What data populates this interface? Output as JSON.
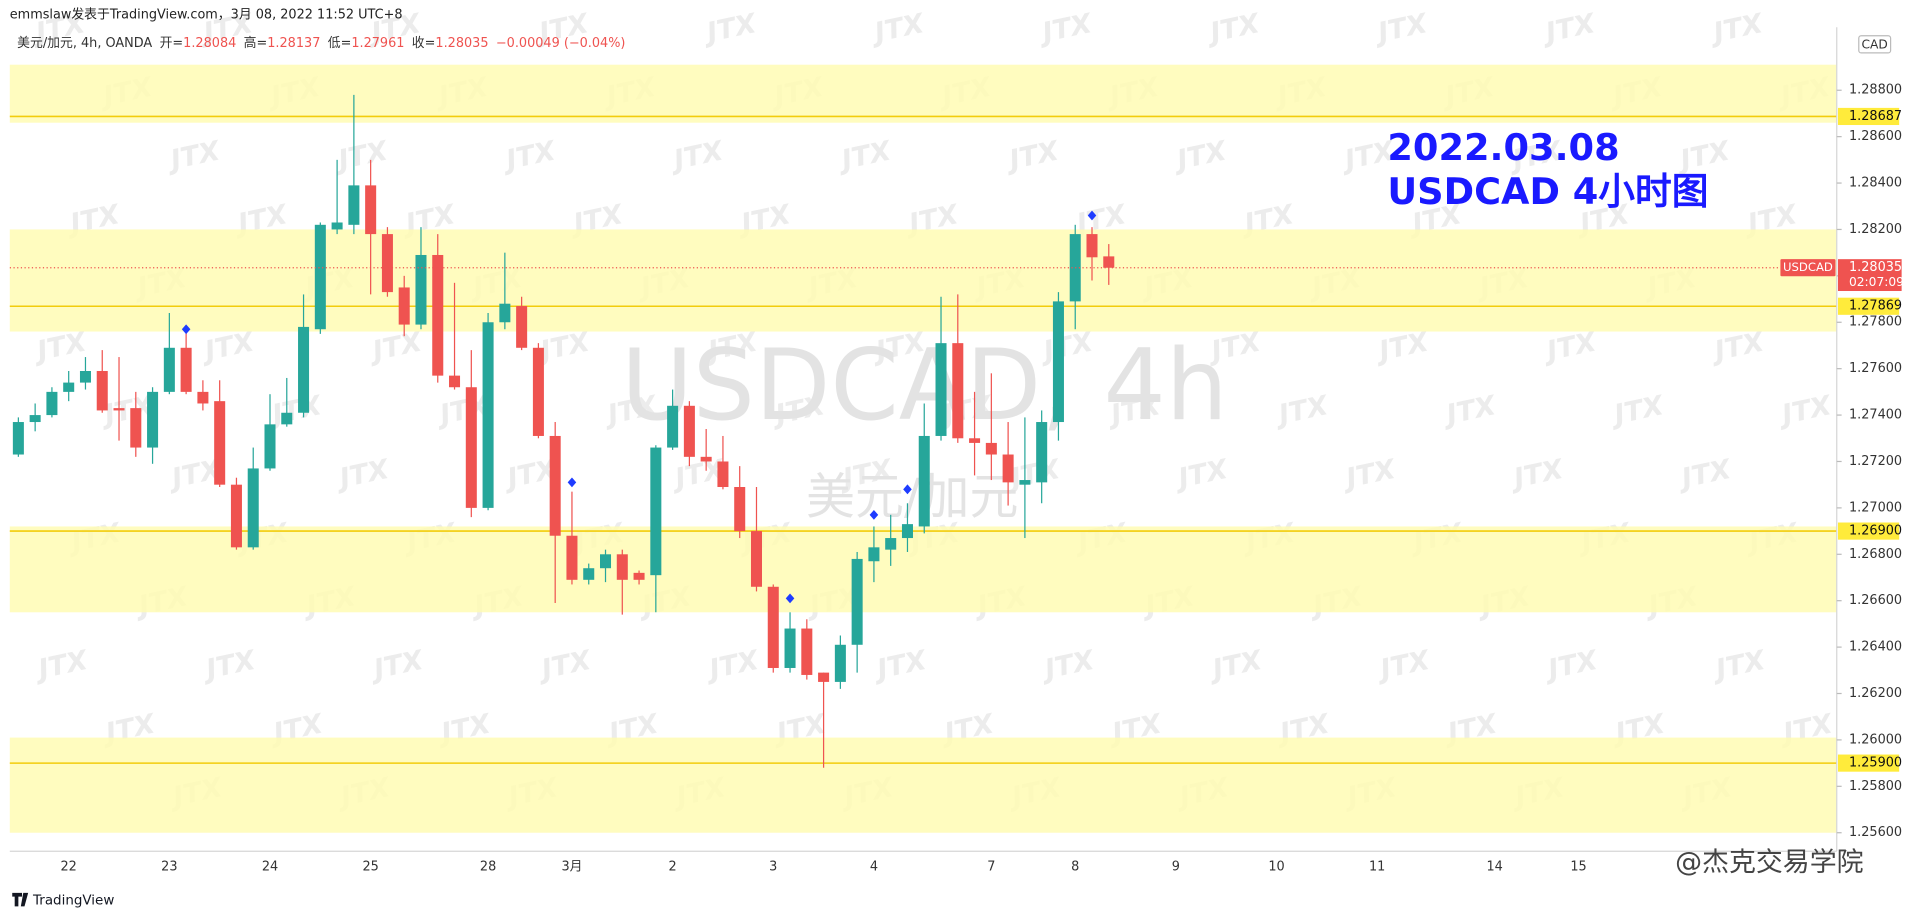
{
  "chart_data": {
    "type": "candlestick",
    "byline": "emmslaw发表于TradingView.com，3月 08, 2022 11:52 UTC+8",
    "legend_symbol": "美元/加元, 4h, OANDA",
    "legend_ohlc": [
      {
        "label": "开=",
        "value": 1.28084
      },
      {
        "label": "高=",
        "value": 1.28137
      },
      {
        "label": "低=",
        "value": 1.27961
      },
      {
        "label": "收=",
        "value": 1.28035
      }
    ],
    "legend_change": "−0.00049 (−0.04%)",
    "currency": "CAD",
    "annotation": [
      "2022.03.08",
      "USDCAD 4小时图"
    ],
    "watermark_title": "USDCAD, 4h",
    "watermark_subtitle": "美元/加元",
    "watermark_logo": "JTX",
    "brand": "TradingView",
    "author_watermark": "@杰克交易学院",
    "up_color": "#26a69a",
    "down_color": "#ef5350",
    "signal_color": "#1e3cff",
    "zone_color": "#fffbb4",
    "level_color": "#f2cc0c",
    "ylim": [
      1.2552,
      1.2904
    ],
    "yticks": [
      {
        "value": 1.256,
        "label": "1.25600"
      },
      {
        "value": 1.258,
        "label": "1.25800"
      },
      {
        "value": 1.26,
        "label": "1.26000"
      },
      {
        "value": 1.262,
        "label": "1.26200"
      },
      {
        "value": 1.264,
        "label": "1.26400"
      },
      {
        "value": 1.266,
        "label": "1.26600"
      },
      {
        "value": 1.268,
        "label": "1.26800"
      },
      {
        "value": 1.27,
        "label": "1.27000"
      },
      {
        "value": 1.272,
        "label": "1.27200"
      },
      {
        "value": 1.274,
        "label": "1.27400"
      },
      {
        "value": 1.276,
        "label": "1.27600"
      },
      {
        "value": 1.278,
        "label": "1.27800"
      },
      {
        "value": 1.28,
        "label": "1.28000"
      },
      {
        "value": 1.282,
        "label": "1.28200"
      },
      {
        "value": 1.284,
        "label": "1.28400"
      },
      {
        "value": 1.286,
        "label": "1.28600"
      },
      {
        "value": 1.288,
        "label": "1.28800"
      }
    ],
    "zones": [
      [
        1.2866,
        1.2891
      ],
      [
        1.2776,
        1.282
      ],
      [
        1.2655,
        1.2692
      ],
      [
        1.256,
        1.2601
      ]
    ],
    "levels": [
      1.28687,
      1.27869,
      {
        "value": 1.269,
        "label": "1.26900"
      },
      {
        "value": 1.259,
        "label": "1.25900"
      }
    ],
    "last_symbol": "USDCAD",
    "last_price": 1.28035,
    "countdown": "02:07:09",
    "categories": [
      null,
      null,
      null,
      "22",
      null,
      null,
      null,
      null,
      null,
      "23",
      null,
      null,
      null,
      null,
      null,
      "24",
      null,
      null,
      null,
      null,
      null,
      "25",
      null,
      null,
      null,
      null,
      null,
      null,
      "28",
      null,
      null,
      null,
      null,
      "3月",
      null,
      null,
      null,
      null,
      null,
      "2",
      null,
      null,
      null,
      null,
      null,
      "3",
      null,
      null,
      null,
      null,
      null,
      "4",
      null,
      null,
      null,
      null,
      null,
      null,
      "7",
      null,
      null,
      null,
      null,
      "8",
      null,
      null,
      null,
      null,
      null,
      "9",
      null,
      null,
      null,
      null,
      null,
      "10",
      null,
      null,
      null,
      null,
      null,
      "11",
      null,
      null,
      null,
      null,
      null,
      null,
      "14",
      null,
      null,
      null,
      null,
      "15"
    ],
    "candles": [
      [
        1.2723,
        1.2739,
        1.2722,
        1.2737
      ],
      [
        1.2737,
        1.2745,
        1.2733,
        1.274
      ],
      [
        1.274,
        1.2752,
        1.2739,
        1.275
      ],
      [
        1.275,
        1.2759,
        1.2746,
        1.2754
      ],
      [
        1.2754,
        1.2765,
        1.2751,
        1.2759
      ],
      [
        1.2759,
        1.2768,
        1.2741,
        1.2742
      ],
      [
        1.2743,
        1.2765,
        1.2729,
        1.2742
      ],
      [
        1.2743,
        1.275,
        1.2722,
        1.2726
      ],
      [
        1.2726,
        1.2752,
        1.2719,
        1.275
      ],
      [
        1.275,
        1.2784,
        1.2749,
        1.2769
      ],
      [
        1.2769,
        1.2776,
        1.2749,
        1.275
      ],
      [
        1.275,
        1.2755,
        1.2742,
        1.2745
      ],
      [
        1.2746,
        1.2755,
        1.2709,
        1.271
      ],
      [
        1.271,
        1.2713,
        1.2682,
        1.2683
      ],
      [
        1.2683,
        1.2726,
        1.2682,
        1.2717
      ],
      [
        1.2717,
        1.2749,
        1.2716,
        1.2736
      ],
      [
        1.2736,
        1.2756,
        1.2735,
        1.2741
      ],
      [
        1.2741,
        1.2792,
        1.2739,
        1.2778
      ],
      [
        1.2777,
        1.2823,
        1.2775,
        1.2822
      ],
      [
        1.282,
        1.285,
        1.2818,
        1.2823
      ],
      [
        1.2822,
        1.2878,
        1.2818,
        1.2839
      ],
      [
        1.2839,
        1.285,
        1.2792,
        1.2818
      ],
      [
        1.2818,
        1.2821,
        1.2791,
        1.2793
      ],
      [
        1.2795,
        1.28,
        1.2774,
        1.2779
      ],
      [
        1.2779,
        1.2821,
        1.2777,
        1.2809
      ],
      [
        1.2809,
        1.2818,
        1.2754,
        1.2757
      ],
      [
        1.2757,
        1.2797,
        1.2751,
        1.2752
      ],
      [
        1.2752,
        1.2768,
        1.2696,
        1.27
      ],
      [
        1.27,
        1.2784,
        1.2699,
        1.278
      ],
      [
        1.278,
        1.281,
        1.2777,
        1.2788
      ],
      [
        1.2787,
        1.2791,
        1.2768,
        1.2769
      ],
      [
        1.2769,
        1.2771,
        1.273,
        1.2731
      ],
      [
        1.2731,
        1.2737,
        1.2659,
        1.2688
      ],
      [
        1.2688,
        1.2707,
        1.2667,
        1.2669
      ],
      [
        1.2669,
        1.2676,
        1.2667,
        1.2674
      ],
      [
        1.2674,
        1.2682,
        1.2668,
        1.268
      ],
      [
        1.268,
        1.2682,
        1.2654,
        1.2669
      ],
      [
        1.2672,
        1.2673,
        1.2667,
        1.2669
      ],
      [
        1.2671,
        1.2727,
        1.2655,
        1.2726
      ],
      [
        1.2726,
        1.2751,
        1.2725,
        1.2744
      ],
      [
        1.2744,
        1.2746,
        1.2718,
        1.2722
      ],
      [
        1.2722,
        1.2734,
        1.2716,
        1.272
      ],
      [
        1.272,
        1.2731,
        1.2708,
        1.2709
      ],
      [
        1.2709,
        1.2718,
        1.2687,
        1.269
      ],
      [
        1.269,
        1.2709,
        1.2664,
        1.2666
      ],
      [
        1.2666,
        1.2667,
        1.2629,
        1.2631
      ],
      [
        1.2631,
        1.2655,
        1.2629,
        1.2648
      ],
      [
        1.2648,
        1.2652,
        1.2626,
        1.2628
      ],
      [
        1.2629,
        1.2629,
        1.2588,
        1.2625
      ],
      [
        1.2625,
        1.2645,
        1.2622,
        1.2641
      ],
      [
        1.2641,
        1.2681,
        1.2629,
        1.2678
      ],
      [
        1.2677,
        1.2692,
        1.2668,
        1.2683
      ],
      [
        1.2682,
        1.2697,
        1.2675,
        1.2687
      ],
      [
        1.2687,
        1.2702,
        1.2681,
        1.2693
      ],
      [
        1.2692,
        1.2745,
        1.2689,
        1.2731
      ],
      [
        1.2731,
        1.2791,
        1.2729,
        1.2771
      ],
      [
        1.2771,
        1.2792,
        1.2728,
        1.273
      ],
      [
        1.273,
        1.275,
        1.2714,
        1.2728
      ],
      [
        1.2728,
        1.2758,
        1.2712,
        1.2723
      ],
      [
        1.2723,
        1.2737,
        1.2701,
        1.2711
      ],
      [
        1.271,
        1.2739,
        1.2687,
        1.2712
      ],
      [
        1.2711,
        1.2742,
        1.2702,
        1.2737
      ],
      [
        1.2737,
        1.2793,
        1.2729,
        1.2789
      ],
      [
        1.2789,
        1.2822,
        1.2777,
        1.2818
      ],
      [
        1.2818,
        1.2821,
        1.2798,
        1.2808
      ],
      [
        1.28084,
        1.28137,
        1.27961,
        1.28035
      ],
      null,
      null,
      null,
      null,
      null,
      null,
      null,
      null,
      null,
      null,
      null,
      null,
      null,
      null,
      null,
      null,
      null,
      null,
      null,
      null,
      null,
      null,
      null,
      null,
      null,
      null,
      null,
      null
    ],
    "signals": [
      null,
      null,
      null,
      null,
      null,
      null,
      null,
      null,
      null,
      null,
      1.2777,
      null,
      null,
      null,
      null,
      null,
      null,
      null,
      null,
      null,
      null,
      null,
      null,
      null,
      null,
      null,
      null,
      null,
      null,
      null,
      null,
      null,
      null,
      1.2711,
      null,
      null,
      null,
      null,
      null,
      null,
      null,
      null,
      null,
      null,
      null,
      null,
      1.2661,
      null,
      null,
      null,
      null,
      1.2697,
      null,
      1.2708,
      null,
      null,
      null,
      null,
      null,
      null,
      null,
      null,
      null,
      null,
      1.2826,
      null,
      null,
      null,
      null,
      null,
      null,
      null,
      null,
      null,
      null,
      null,
      null,
      null,
      null,
      null,
      null,
      null,
      null,
      null,
      null,
      null,
      null,
      null,
      null,
      null,
      null,
      null,
      null
    ]
  }
}
